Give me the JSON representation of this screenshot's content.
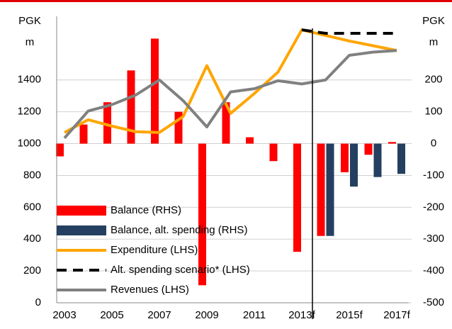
{
  "chart_data": {
    "type": "combo",
    "y_label_lines": [
      "PGK",
      "m"
    ],
    "y2_label_lines": [
      "PGK",
      "m"
    ],
    "categories": [
      "2003",
      null,
      "2005",
      null,
      "2007",
      null,
      "2009",
      null,
      "2011",
      null,
      "2013f",
      null,
      "2015f",
      null,
      "2017f"
    ],
    "ylim": [
      0,
      1800
    ],
    "yticks": [
      0,
      200,
      400,
      600,
      800,
      1000,
      1200,
      1400
    ],
    "y2lim": [
      -500,
      400
    ],
    "y2ticks": [
      -500,
      -400,
      -300,
      -200,
      -100,
      0,
      100,
      200
    ],
    "grid": true,
    "legend": "lower left",
    "series": [
      {
        "name": "Balance (RHS)",
        "type": "bar",
        "axis": "y2",
        "color": "#ff0000",
        "values": [
          -40,
          60,
          130,
          230,
          330,
          100,
          -445,
          130,
          20,
          -55,
          -340,
          -290,
          -90,
          -35,
          5
        ]
      },
      {
        "name": "Balance, alt. spending (RHS)",
        "type": "bar",
        "axis": "y2",
        "color": "#243f60",
        "values": [
          null,
          null,
          null,
          null,
          null,
          null,
          null,
          null,
          null,
          null,
          null,
          -290,
          -135,
          -105,
          -95
        ]
      },
      {
        "name": "Expenditure (LHS)",
        "type": "line",
        "color": "#ffa500",
        "values": [
          1070,
          1150,
          1110,
          1075,
          1070,
          1170,
          1490,
          1190,
          1315,
          1450,
          1715,
          1680,
          1645,
          1615,
          1585
        ]
      },
      {
        "name": "Alt. spending scenario* (LHS)",
        "type": "dashed",
        "color": "#000000",
        "values": [
          null,
          null,
          null,
          null,
          null,
          null,
          null,
          null,
          null,
          null,
          1715,
          1693,
          1693,
          1693,
          1693
        ]
      },
      {
        "name": "Revenues (LHS)",
        "type": "line",
        "color": "#808080",
        "values": [
          1035,
          1205,
          1245,
          1305,
          1400,
          1270,
          1105,
          1325,
          1345,
          1395,
          1375,
          1400,
          1555,
          1575,
          1585
        ]
      }
    ]
  }
}
